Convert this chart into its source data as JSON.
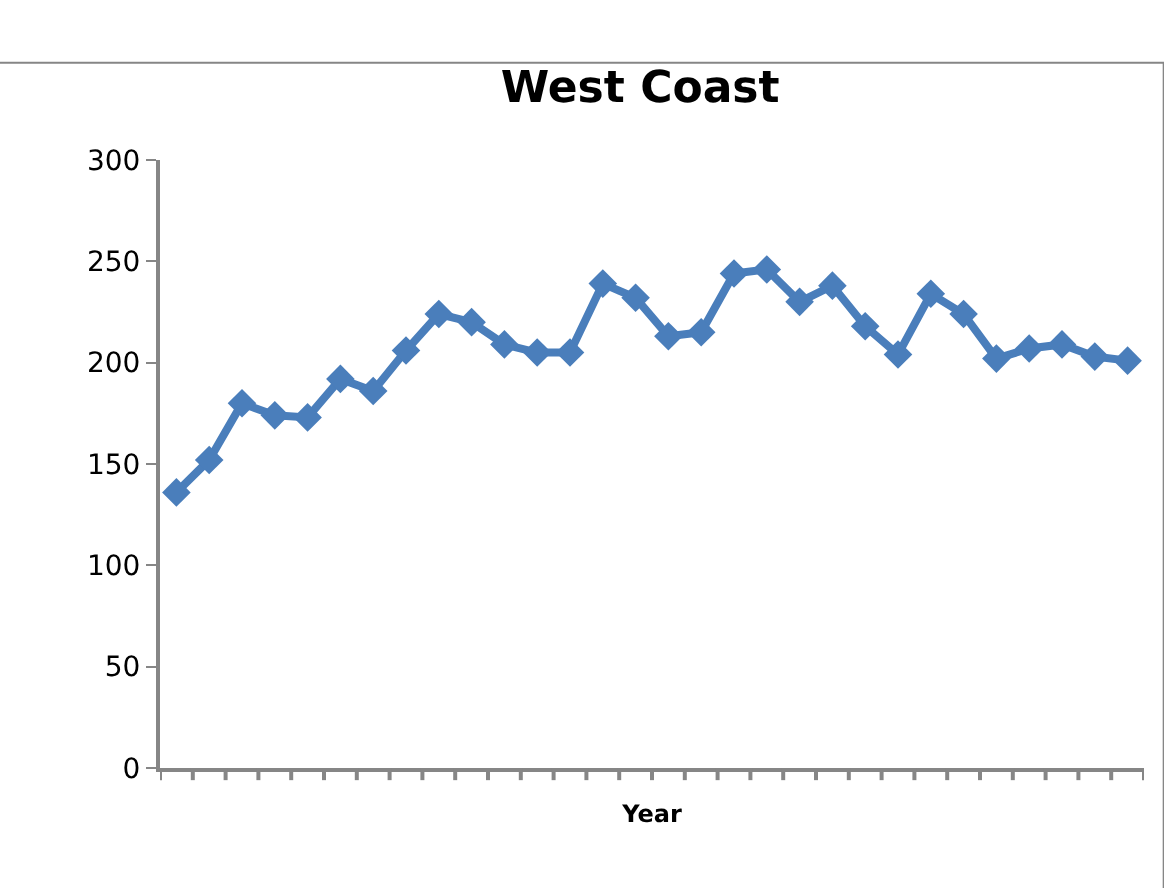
{
  "chart_data": {
    "type": "line",
    "title": "West Coast",
    "xlabel": "Year",
    "categories": [
      null,
      null,
      null,
      null,
      null,
      null,
      null,
      null,
      null,
      null,
      null,
      null,
      null,
      null,
      null,
      null,
      null,
      null,
      null,
      null,
      null,
      null,
      null,
      null,
      null,
      null,
      null,
      null,
      null,
      null
    ],
    "series": [
      {
        "color": "#4a7ebb",
        "values": [
          136,
          152,
          180,
          174,
          173,
          192,
          186,
          206,
          224,
          220,
          209,
          205,
          205,
          239,
          232,
          213,
          215,
          244,
          246,
          230,
          238,
          218,
          204,
          234,
          224,
          202,
          207,
          209,
          203,
          201
        ]
      }
    ],
    "ylim": [
      0,
      300
    ],
    "yticks": [
      0,
      50,
      100,
      150,
      200,
      250,
      300
    ],
    "marker": "diamond",
    "line_style": "solid"
  }
}
